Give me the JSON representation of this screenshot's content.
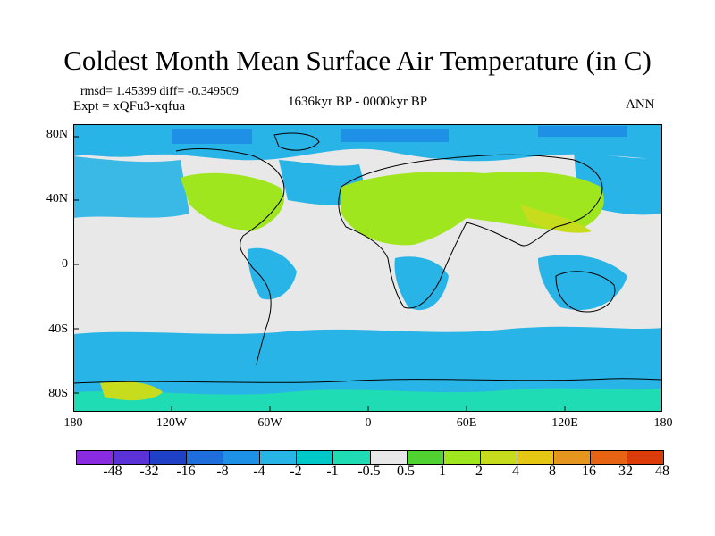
{
  "title": "Coldest Month Mean Surface Air Temperature (in C)",
  "stats": {
    "rmsd_diff": "rmsd= 1.45399 diff= -0.349509",
    "expt": "Expt = xQFu3-xqfua",
    "period": "1636kyr BP - 0000kyr BP",
    "season": "ANN"
  },
  "axes": {
    "lat_labels": [
      "80N",
      "40N",
      "0",
      "40S",
      "80S"
    ],
    "lon_labels": [
      "180",
      "120W",
      "60W",
      "0",
      "60E",
      "120E",
      "180"
    ]
  },
  "colorbar": {
    "colors": [
      "#8a2be2",
      "#5a32d8",
      "#2040c8",
      "#1e6fdc",
      "#1e90e6",
      "#28b4e6",
      "#00c8c8",
      "#20dcb4",
      "#e8e8e8",
      "#50d232",
      "#a0e61e",
      "#c8dc1e",
      "#e6c814",
      "#e6961e",
      "#e66414",
      "#dc3c0a"
    ],
    "labels": [
      "-48",
      "-32",
      "-16",
      "-8",
      "-4",
      "-2",
      "-1",
      "-0.5",
      "0.5",
      "1",
      "2",
      "4",
      "8",
      "16",
      "32",
      "48"
    ]
  }
}
